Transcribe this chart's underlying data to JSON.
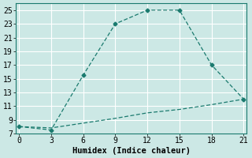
{
  "title": "",
  "xlabel": "Humidex (Indice chaleur)",
  "bg_color": "#cce8e5",
  "grid_color": "#b0d8d5",
  "line_color": "#1a7a6e",
  "line1_x": [
    0,
    3,
    6,
    9,
    12,
    15,
    18,
    21
  ],
  "line1_y": [
    8.0,
    7.5,
    15.5,
    23.0,
    25.0,
    25.0,
    17.0,
    12.0
  ],
  "line2_x": [
    0,
    3,
    6,
    9,
    12,
    15,
    18,
    21
  ],
  "line2_y": [
    8.0,
    7.8,
    8.5,
    9.2,
    10.0,
    10.5,
    11.2,
    12.0
  ],
  "ylim": [
    7,
    26
  ],
  "xlim": [
    -0.3,
    21.3
  ],
  "yticks": [
    7,
    9,
    11,
    13,
    15,
    17,
    19,
    21,
    23,
    25
  ],
  "xticks": [
    0,
    3,
    6,
    9,
    12,
    15,
    18,
    21
  ],
  "tick_fontsize": 7,
  "label_fontsize": 7.5
}
